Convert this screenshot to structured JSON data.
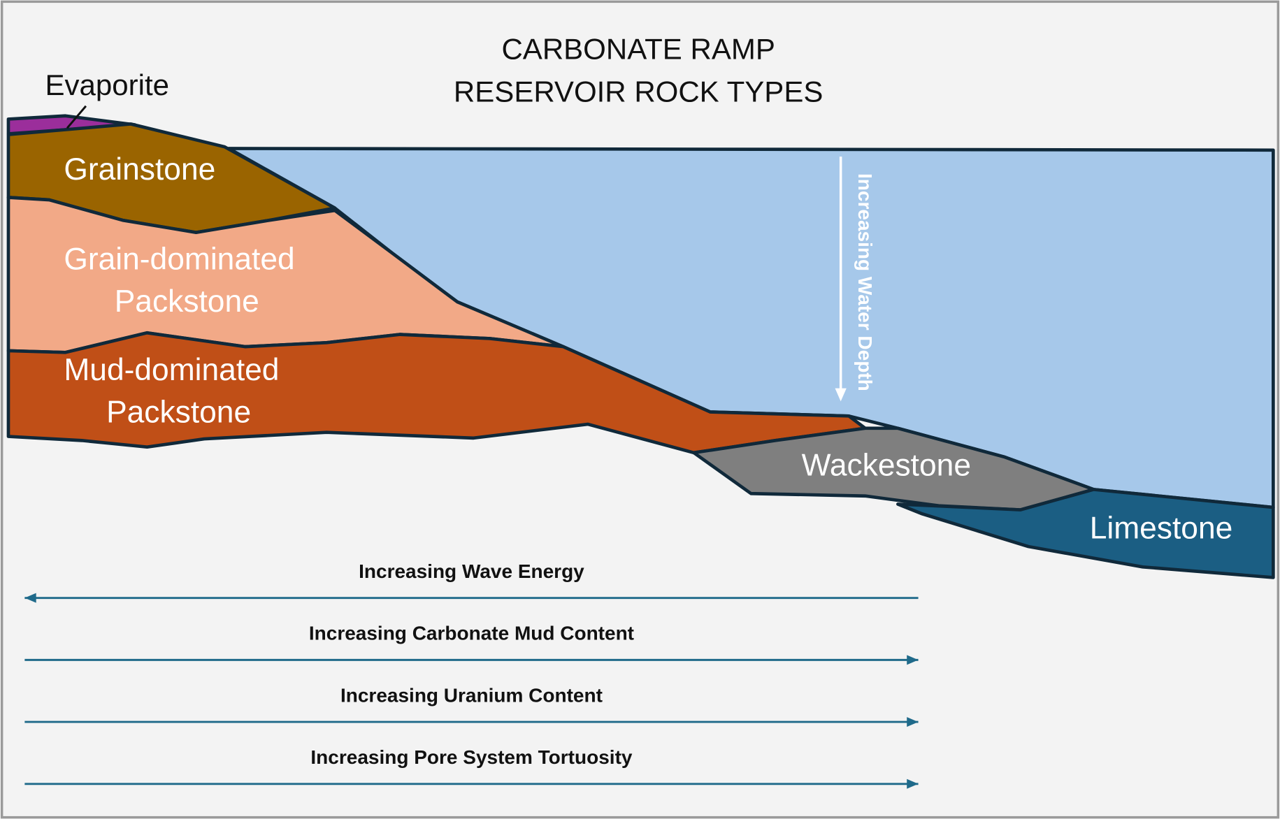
{
  "title": [
    "CARBONATE RAMP",
    "RESERVOIR ROCK TYPES"
  ],
  "layers": [
    {
      "lines": [
        "Evaporite"
      ]
    },
    {
      "lines": [
        "Grainstone"
      ]
    },
    {
      "lines": [
        "Grain-dominated",
        "Packstone"
      ]
    },
    {
      "lines": [
        "Mud-dominated",
        "Packstone"
      ]
    },
    {
      "lines": [
        "Wackestone"
      ]
    },
    {
      "lines": [
        "Limestone"
      ]
    }
  ],
  "water_label": "Increasing Water Depth",
  "trends": [
    {
      "label": "Increasing Wave Energy",
      "direction": "left"
    },
    {
      "label": "Increasing Carbonate Mud Content",
      "direction": "right"
    },
    {
      "label": "Increasing Uranium Content",
      "direction": "right"
    },
    {
      "label": "Increasing Pore System Tortuosity",
      "direction": "right"
    }
  ]
}
